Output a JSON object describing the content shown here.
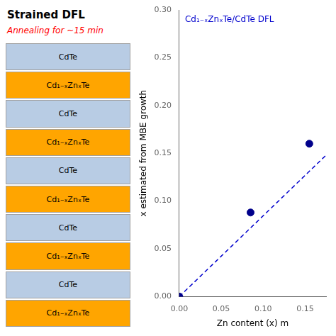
{
  "chart_data": {
    "type": "scatter",
    "title": "Strained DFL",
    "title_color": "#000000",
    "subtitle": "Annealing for ~15 min",
    "subtitle_color": "#FF0000",
    "layers": [
      {
        "name": "CdTe",
        "color": "#b8cce4"
      },
      {
        "name": "Cd₁₋ₓZnₓTe",
        "color": "#FFA500"
      },
      {
        "name": "CdTe",
        "color": "#b8cce4"
      },
      {
        "name": "Cd₁₋ₓZnₓTe",
        "color": "#FFA500"
      },
      {
        "name": "CdTe",
        "color": "#b8cce4"
      },
      {
        "name": "Cd₁₋ₓZnₓTe",
        "color": "#FFA500"
      },
      {
        "name": "CdTe",
        "color": "#b8cce4"
      },
      {
        "name": "Cd₁₋ₓZnₓTe",
        "color": "#FFA500"
      },
      {
        "name": "CdTe",
        "color": "#b8cce4"
      },
      {
        "name": "Cd₁₋ₓZnₓTe",
        "color": "#FFA500"
      }
    ],
    "series": [
      {
        "type": "line",
        "line_style": "dashed",
        "color": "#0000CD",
        "x": [
          0.0,
          0.175
        ],
        "values": [
          0.0,
          0.148
        ]
      },
      {
        "type": "scatter",
        "marker": "circle",
        "color": "#00008B",
        "x": [
          0.0,
          0.085,
          0.155
        ],
        "values": [
          0.0,
          0.088,
          0.16
        ]
      }
    ],
    "xlim": [
      0.0,
      0.175
    ],
    "ylim": [
      0.0,
      0.3
    ],
    "xticks": [
      {
        "value": 0.0,
        "label": "0.00"
      },
      {
        "value": 0.05,
        "label": "0.05"
      },
      {
        "value": 0.1,
        "label": "0.10"
      },
      {
        "value": 0.15,
        "label": "0.15"
      }
    ],
    "yticks": [
      {
        "value": 0.0,
        "label": "0.00"
      },
      {
        "value": 0.05,
        "label": "0.05"
      },
      {
        "value": 0.1,
        "label": "0.10"
      },
      {
        "value": 0.15,
        "label": "0.15"
      },
      {
        "value": 0.2,
        "label": "0.20"
      },
      {
        "value": 0.25,
        "label": "0.25"
      },
      {
        "value": 0.3,
        "label": "0.30"
      }
    ],
    "xlabel": "Zn content (x) m",
    "ylabel": "x estimated from MBE growth",
    "annotations": [
      {
        "text": "Cd₁₋ₓZnₓTe/CdTe DFL",
        "color": "#0000CD"
      }
    ],
    "grid": false
  }
}
